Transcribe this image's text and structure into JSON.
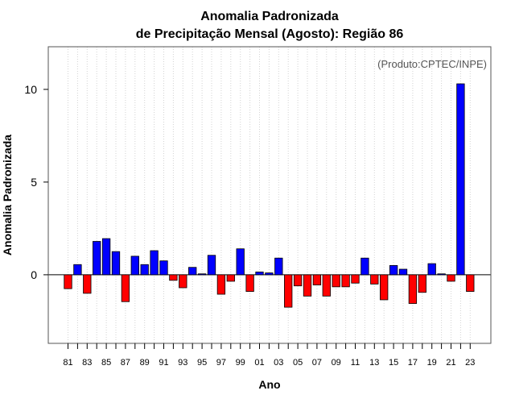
{
  "chart_data": {
    "type": "bar",
    "title": "Anomalia Padronizada",
    "subtitle": "de Precipitação Mensal (Agosto): Região 86",
    "xlabel": "Ano",
    "ylabel": "Anomalia Padronizada",
    "credit": "(Produto:CPTEC/INPE)",
    "ylim": [
      -3.7,
      12.3
    ],
    "yticks": [
      0,
      5,
      10
    ],
    "years": [
      1981,
      1982,
      1983,
      1984,
      1985,
      1986,
      1987,
      1988,
      1989,
      1990,
      1991,
      1992,
      1993,
      1994,
      1995,
      1996,
      1997,
      1998,
      1999,
      2000,
      2001,
      2002,
      2003,
      2004,
      2005,
      2006,
      2007,
      2008,
      2009,
      2010,
      2011,
      2012,
      2013,
      2014,
      2015,
      2016,
      2017,
      2018,
      2019,
      2020,
      2021,
      2022,
      2023
    ],
    "xtick_labels": [
      "81",
      "83",
      "85",
      "87",
      "89",
      "91",
      "93",
      "95",
      "97",
      "99",
      "01",
      "03",
      "05",
      "07",
      "09",
      "11",
      "13",
      "15",
      "17",
      "19",
      "21",
      "23"
    ],
    "values": [
      -0.75,
      0.55,
      -1.0,
      1.8,
      1.95,
      1.25,
      -1.45,
      1.0,
      0.55,
      1.3,
      0.75,
      -0.3,
      -0.7,
      0.4,
      0.05,
      1.05,
      -1.05,
      -0.35,
      1.4,
      -0.9,
      0.15,
      0.1,
      0.9,
      -1.75,
      -0.6,
      -1.15,
      -0.55,
      -1.15,
      -0.65,
      -0.65,
      -0.45,
      0.9,
      -0.5,
      -1.35,
      0.5,
      0.3,
      -1.55,
      -0.95,
      0.6,
      0.05,
      -0.35,
      10.3,
      -0.9
    ],
    "colors": {
      "positive": "#0000ff",
      "negative": "#ff0000",
      "grid": "#d3d3d3"
    }
  }
}
